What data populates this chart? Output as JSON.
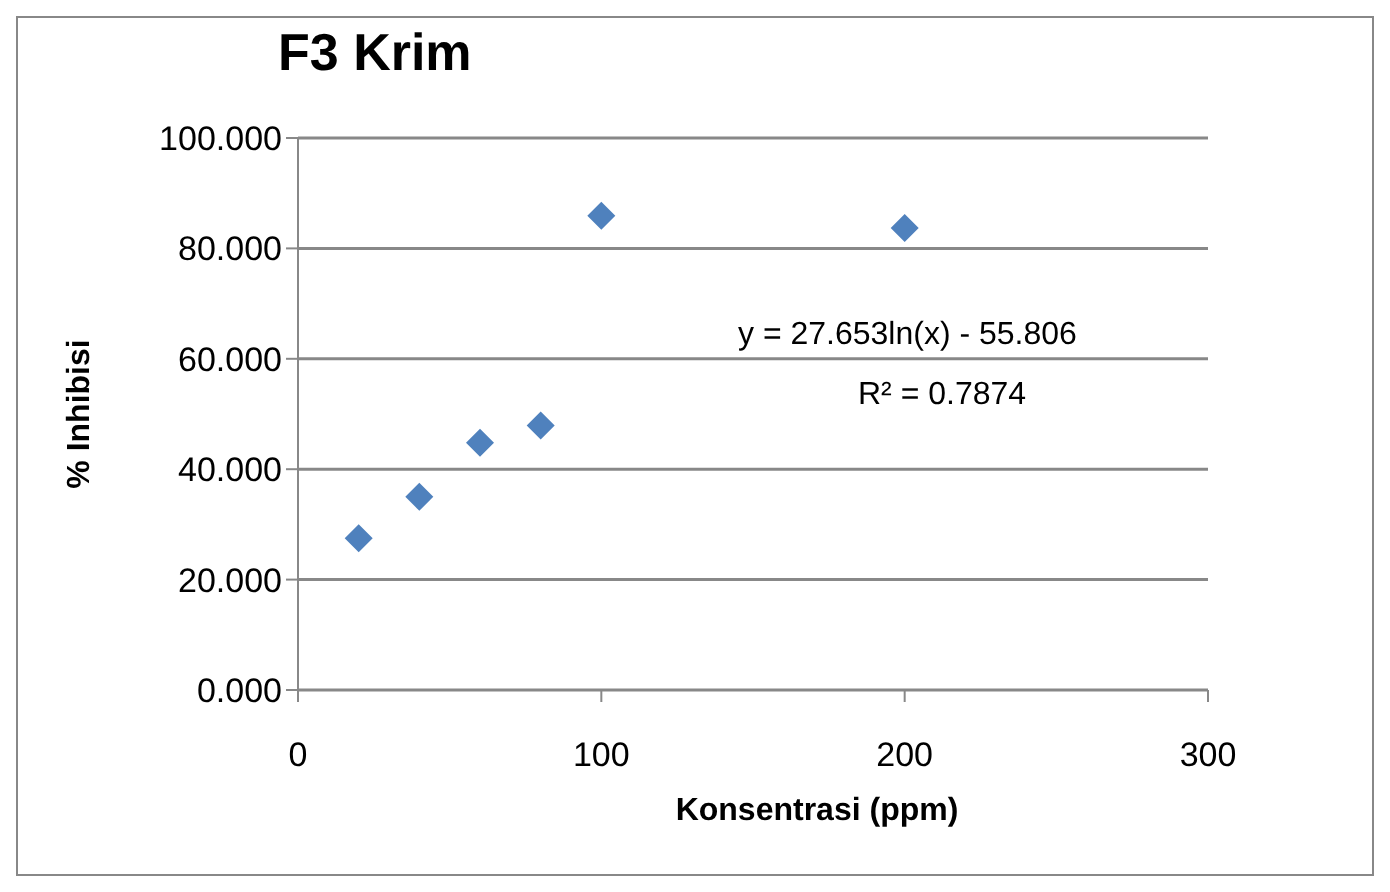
{
  "chart_data": {
    "type": "scatter",
    "title": "F3 Krim",
    "xlabel": "Konsentrasi (ppm)",
    "ylabel": "% Inhibisi",
    "x": [
      20,
      40,
      60,
      80,
      100,
      200
    ],
    "series": [
      {
        "color": "#4f81bd",
        "values": [
          27.5,
          35,
          44.8,
          47.9,
          85.9,
          83.7
        ]
      }
    ],
    "xlim": [
      0,
      300
    ],
    "xticks": [
      0,
      100,
      200,
      300
    ],
    "ylim": [
      0,
      100
    ],
    "yticks": [
      {
        "value": 0,
        "label": "0.000"
      },
      {
        "value": 20,
        "label": "20.000"
      },
      {
        "value": 40,
        "label": "40.000"
      },
      {
        "value": 60,
        "label": "60.000"
      },
      {
        "value": 80,
        "label": "80.000"
      },
      {
        "value": 100,
        "label": "100.000"
      }
    ],
    "grid": "y",
    "marker": "diamond",
    "annotations": [
      "y = 27.653ln(x) - 55.806",
      "R² = 0.7874"
    ]
  }
}
